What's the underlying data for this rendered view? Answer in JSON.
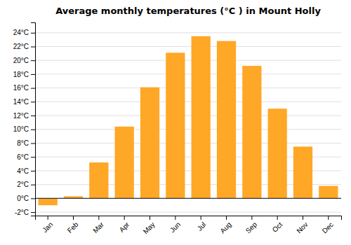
{
  "chart_data": {
    "type": "bar",
    "title": "Average monthly temperatures (°C ) in Mount Holly",
    "categories": [
      "Jan",
      "Feb",
      "Mar",
      "Apr",
      "May",
      "Jun",
      "Jul",
      "Aug",
      "Sep",
      "Oct",
      "Nov",
      "Dec"
    ],
    "values": [
      -1.0,
      0.3,
      5.2,
      10.4,
      16.1,
      21.1,
      23.5,
      22.8,
      19.2,
      13.0,
      7.5,
      1.8
    ],
    "color": "#FFA726",
    "ylim": [
      -2.5,
      25.5
    ],
    "yticks": [
      {
        "value": -2,
        "label": "-2°C"
      },
      {
        "value": 0,
        "label": "0°C"
      },
      {
        "value": 2,
        "label": "2°C"
      },
      {
        "value": 4,
        "label": "4°C"
      },
      {
        "value": 6,
        "label": "6°C"
      },
      {
        "value": 8,
        "label": "8°C"
      },
      {
        "value": 10,
        "label": "10°C"
      },
      {
        "value": 12,
        "label": "12°C"
      },
      {
        "value": 14,
        "label": "14°C"
      },
      {
        "value": 16,
        "label": "16°C"
      },
      {
        "value": 18,
        "label": "18°C"
      },
      {
        "value": 20,
        "label": "20°C"
      },
      {
        "value": 22,
        "label": "22°C"
      },
      {
        "value": 24,
        "label": "24°C"
      }
    ],
    "grid": true
  }
}
